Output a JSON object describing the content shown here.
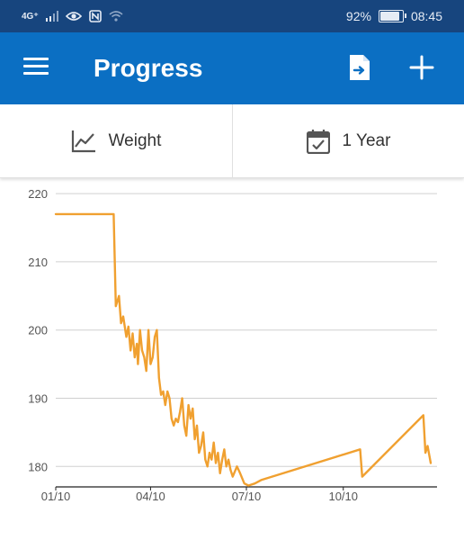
{
  "status_bar": {
    "network": "4G⁺",
    "battery_percent": "92%",
    "battery_level": 0.92,
    "time": "08:45"
  },
  "app_bar": {
    "title": "Progress",
    "menu_icon": "hamburger-menu-icon",
    "export_icon": "export-file-icon",
    "add_icon": "plus-icon"
  },
  "toolbar": {
    "metric_label": "Weight",
    "metric_icon": "line-chart-icon",
    "range_label": "1 Year",
    "range_icon": "calendar-check-icon"
  },
  "colors": {
    "status_bar": "#17457e",
    "app_bar": "#0b6fc3",
    "series": "#f0a030",
    "grid": "#d0d0d0"
  },
  "chart_data": {
    "type": "line",
    "title": "",
    "xlabel": "",
    "ylabel": "",
    "ylim": [
      177,
      222
    ],
    "y_ticks": [
      "220",
      "210",
      "200",
      "190",
      "180"
    ],
    "x_ticks": [
      "01/10",
      "04/10",
      "07/10",
      "10/10"
    ],
    "xlim": [
      "2019-01-10",
      "2020-01-07"
    ],
    "grid": true,
    "legend": "none",
    "series": [
      {
        "x": [
          "2019-01-10",
          "2019-03-06",
          "2019-03-08",
          "2019-03-11",
          "2019-03-13",
          "2019-03-15",
          "2019-03-18",
          "2019-03-20",
          "2019-03-22",
          "2019-03-24",
          "2019-03-26",
          "2019-03-28",
          "2019-03-29",
          "2019-03-31",
          "2019-04-02",
          "2019-04-04",
          "2019-04-06",
          "2019-04-08",
          "2019-04-10",
          "2019-04-12",
          "2019-04-14",
          "2019-04-16",
          "2019-04-18",
          "2019-04-20",
          "2019-04-22",
          "2019-04-24",
          "2019-04-26",
          "2019-04-28",
          "2019-04-30",
          "2019-05-02",
          "2019-05-04",
          "2019-05-06",
          "2019-05-08",
          "2019-05-10",
          "2019-05-12",
          "2019-05-14",
          "2019-05-16",
          "2019-05-18",
          "2019-05-20",
          "2019-05-22",
          "2019-05-24",
          "2019-05-26",
          "2019-05-28",
          "2019-05-30",
          "2019-06-01",
          "2019-06-03",
          "2019-06-05",
          "2019-06-07",
          "2019-06-09",
          "2019-06-11",
          "2019-06-13",
          "2019-06-15",
          "2019-06-17",
          "2019-06-19",
          "2019-06-21",
          "2019-06-23",
          "2019-06-25",
          "2019-06-27",
          "2019-07-01",
          "2019-07-04",
          "2019-07-08",
          "2019-07-12",
          "2019-07-18",
          "2019-07-24",
          "2019-10-26",
          "2019-10-28",
          "2019-12-25",
          "2019-12-27",
          "2019-12-29",
          "2020-01-01"
        ],
        "y": [
          217,
          217,
          203.5,
          205,
          201,
          202,
          199,
          200.5,
          197,
          199.5,
          196,
          198,
          195,
          200,
          197,
          196,
          194,
          200,
          195,
          196,
          199,
          200,
          193,
          190.5,
          191,
          189,
          191,
          190,
          187,
          186,
          187,
          186.5,
          188,
          190,
          186,
          184.5,
          189,
          187,
          188.5,
          184,
          186,
          182,
          183,
          185,
          181,
          180,
          182,
          181,
          183.5,
          180.5,
          182,
          179,
          181,
          182.5,
          180,
          181,
          179.5,
          178.5,
          180,
          179,
          177.5,
          177.2,
          177.5,
          178,
          182.5,
          178.5,
          187.5,
          182,
          183,
          180.5
        ]
      }
    ]
  }
}
